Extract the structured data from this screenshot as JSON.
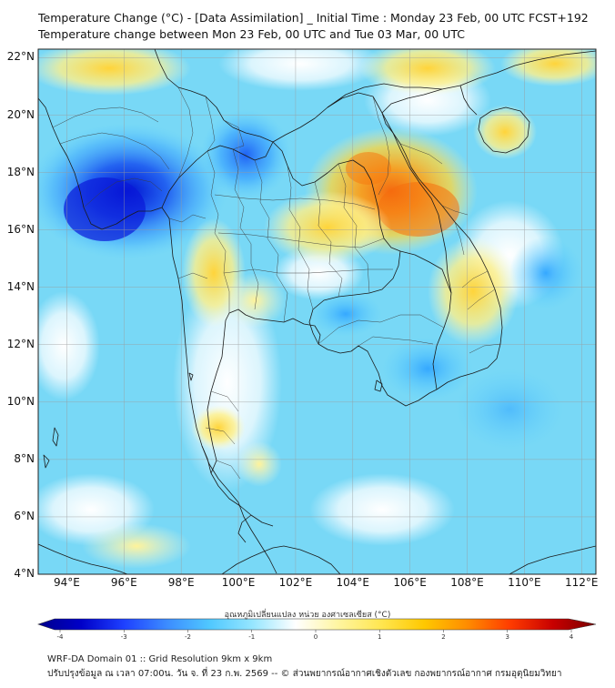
{
  "header": {
    "title_line1": "Temperature Change (°C) - [Data Assimilation] _ Initial Time : Monday 23 Feb, 00 UTC FCST+192",
    "title_line2": "Temperature change between Mon 23 Feb, 00 UTC and Tue 03 Mar, 00 UTC"
  },
  "map": {
    "lat_labels": [
      "22°N",
      "20°N",
      "18°N",
      "16°N",
      "14°N",
      "12°N",
      "10°N",
      "8°N",
      "6°N",
      "4°N"
    ],
    "lon_labels": [
      "94°E",
      "96°E",
      "98°E",
      "100°E",
      "102°E",
      "104°E",
      "106°E",
      "108°E",
      "110°E",
      "112°E"
    ],
    "lat_range": [
      4,
      22.3
    ],
    "lon_range": [
      93,
      112.5
    ],
    "features": [
      {
        "name": "cooling-myanmar",
        "lon": 96.0,
        "lat": 17.4,
        "delta": -3.2
      },
      {
        "name": "cooling-north-thailand",
        "lon": 100.2,
        "lat": 18.6,
        "delta": -2.2
      },
      {
        "name": "cooling-south-china-sea",
        "lon": 107.0,
        "lat": 10.8,
        "delta": -1.8
      },
      {
        "name": "warming-laos",
        "lon": 105.8,
        "lat": 17.0,
        "delta": 2.4
      },
      {
        "name": "warming-northeast-thailand",
        "lon": 103.5,
        "lat": 15.5,
        "delta": 1.0
      },
      {
        "name": "warming-hainan",
        "lon": 109.5,
        "lat": 19.0,
        "delta": 1.2
      },
      {
        "name": "warming-north-border",
        "lon": 98.0,
        "lat": 21.8,
        "delta": 1.0
      }
    ]
  },
  "colorbar": {
    "title": "อุณหภูมิเปลี่ยนแปลง หน่วย องศาเซลเซียส (°C)",
    "min": -4,
    "max": 4,
    "ticks": [
      "-4",
      "-3",
      "-2",
      "-1",
      "0",
      "1",
      "2",
      "3",
      "4"
    ],
    "colors": [
      "#00008c",
      "#0000c8",
      "#1e40ff",
      "#3c8cff",
      "#50c8ff",
      "#96e6ff",
      "#ffffff",
      "#fff5a0",
      "#ffe650",
      "#ffc800",
      "#ff8c00",
      "#ff3c00",
      "#c80000",
      "#780000"
    ]
  },
  "footer": {
    "line1": "WRF-DA Domain 01 :: Grid Resolution 9km x 9km",
    "line2": "ปรับปรุงข้อมูล ณ เวลา 07:00น. วัน จ. ที่ 23 ก.พ. 2569 -- © ส่วนพยากรณ์อากาศเชิงตัวเลข กองพยากรณ์อากาศ กรมอุตุนิยมวิทยา"
  }
}
